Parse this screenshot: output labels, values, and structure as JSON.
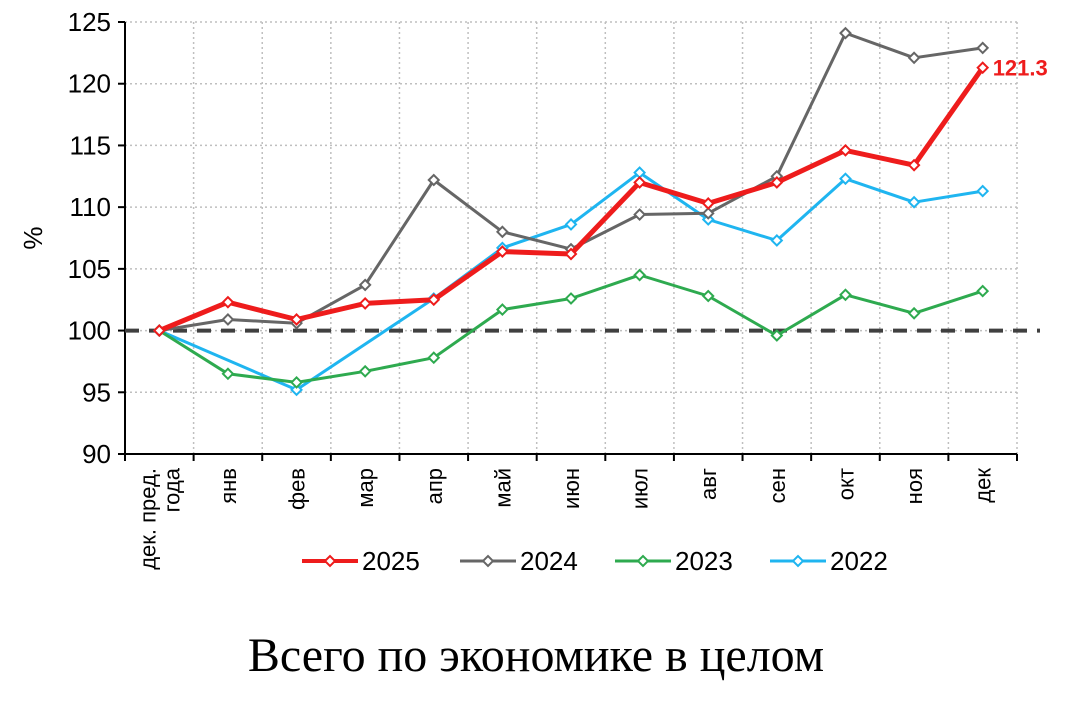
{
  "caption": "Всего по экономике в целом",
  "colors": {
    "axis": "#000000",
    "grid": "#bfbfbf",
    "baseline": "#404040"
  },
  "chart_data": {
    "type": "line",
    "ylabel": "%",
    "ylim": [
      90,
      125
    ],
    "yticks": [
      90,
      95,
      100,
      105,
      110,
      115,
      120,
      125
    ],
    "grid": true,
    "reference_line": 100,
    "legend_position": "bottom",
    "categories": [
      "дек. пред. года",
      "янв",
      "фев",
      "мар",
      "апр",
      "май",
      "июн",
      "июл",
      "авг",
      "сен",
      "окт",
      "ноя",
      "дек"
    ],
    "series": [
      {
        "name": "2022",
        "color": "#1fb5f0",
        "width": 3,
        "values": [
          100.0,
          null,
          95.2,
          null,
          102.6,
          106.7,
          108.6,
          112.8,
          109.0,
          107.3,
          112.3,
          110.4,
          111.3
        ]
      },
      {
        "name": "2023",
        "color": "#2eaa4f",
        "width": 3,
        "values": [
          100.0,
          96.5,
          95.8,
          96.7,
          97.8,
          101.7,
          102.6,
          104.5,
          102.8,
          99.6,
          102.9,
          101.4,
          103.2
        ]
      },
      {
        "name": "2024",
        "color": "#666666",
        "width": 3,
        "values": [
          100.0,
          100.9,
          100.6,
          103.7,
          112.2,
          108.0,
          106.6,
          109.4,
          109.5,
          112.5,
          124.1,
          122.1,
          122.9
        ]
      },
      {
        "name": "2025",
        "color": "#ee1c1c",
        "width": 5,
        "values": [
          100.0,
          102.3,
          100.9,
          102.2,
          102.5,
          106.4,
          106.2,
          112.0,
          110.3,
          112.0,
          114.6,
          113.4,
          121.3
        ]
      }
    ],
    "legend_order": [
      "2025",
      "2024",
      "2023",
      "2022"
    ],
    "annotations": [
      {
        "series": "2025",
        "index": 12,
        "text": "121.3",
        "color": "#ee1c1c"
      }
    ]
  }
}
